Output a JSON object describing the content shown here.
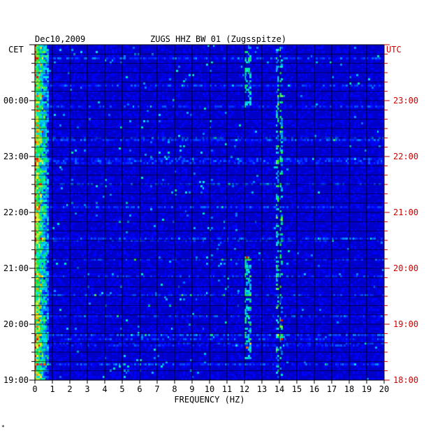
{
  "chart_data": {
    "type": "heatmap",
    "title_left": "Dec10,2009",
    "title": "ZUGS HHZ BW 01 (Zugsspitze)",
    "left_axis_label": "CET",
    "right_axis_label": "UTC",
    "xlabel": "FREQUENCY (HZ)",
    "xlim": [
      0,
      20
    ],
    "x_ticks": [
      "0",
      "1",
      "2",
      "3",
      "4",
      "5",
      "6",
      "7",
      "8",
      "9",
      "10",
      "11",
      "12",
      "13",
      "14",
      "15",
      "16",
      "17",
      "18",
      "19",
      "20"
    ],
    "left_ticks": [
      "00:00",
      "23:00",
      "22:00",
      "21:00",
      "20:00",
      "19:00"
    ],
    "right_ticks": [
      "23:00",
      "22:00",
      "21:00",
      "20:00",
      "19:00",
      "18:00"
    ],
    "time_span_hours": [
      0,
      6
    ],
    "colors": {
      "background": "#0000c8",
      "left_axis": "#000000",
      "right_axis": "#d00000"
    },
    "features": [
      {
        "freq": 0.3,
        "description": "strong low-frequency energy band"
      },
      {
        "freq": 12.2,
        "description": "intermittent spectral line"
      },
      {
        "freq": 14.0,
        "description": "intermittent spectral line"
      }
    ]
  },
  "footer_mark": "*"
}
